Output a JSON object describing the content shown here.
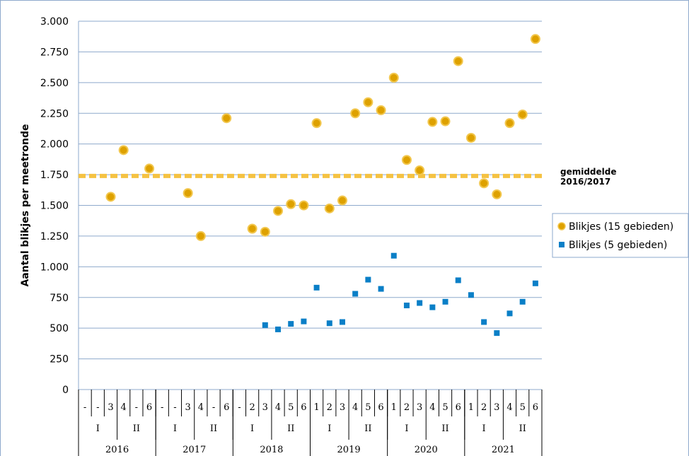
{
  "chart_data": {
    "type": "scatter",
    "ylabel": "Aantal blikjes per meetronde",
    "ylim": [
      0,
      3000
    ],
    "yticks": [
      0,
      250,
      500,
      750,
      1000,
      1250,
      1500,
      1750,
      2000,
      2250,
      2500,
      2750,
      3000
    ],
    "ytick_labels": [
      "0",
      "250",
      "500",
      "750",
      "1.000",
      "1.250",
      "1.500",
      "1.750",
      "2.000",
      "2.250",
      "2.500",
      "2.750",
      "3.000"
    ],
    "grid": true,
    "categories_level1": [
      "-",
      "-",
      "3",
      "4",
      "-",
      "6",
      "-",
      "-",
      "3",
      "4",
      "-",
      "6",
      "-",
      "2",
      "3",
      "4",
      "5",
      "6",
      "1",
      "2",
      "3",
      "4",
      "5",
      "6",
      "1",
      "2",
      "3",
      "4",
      "5",
      "6",
      "1",
      "2",
      "3",
      "4",
      "5",
      "6"
    ],
    "categories_level2": [
      "I",
      "II",
      "I",
      "II",
      "I",
      "II",
      "I",
      "II",
      "I",
      "II",
      "I",
      "II"
    ],
    "categories_level3": [
      "2016",
      "2017",
      "2018",
      "2019",
      "2020",
      "2021"
    ],
    "average_line": {
      "value": 1740,
      "label_line1": "gemiddelde",
      "label_line2": "2016/2017",
      "color": "#f5c242"
    },
    "legend_position": "right",
    "series": [
      {
        "name": "Blikjes (15 gebieden)",
        "marker": "circle",
        "color": "#dea100",
        "edge": "#f2c74e",
        "values": [
          null,
          null,
          1570,
          1950,
          null,
          1800,
          null,
          null,
          1600,
          1250,
          null,
          2210,
          null,
          1310,
          1285,
          1455,
          1510,
          1500,
          2170,
          1475,
          1540,
          2250,
          2340,
          2275,
          2540,
          1870,
          1785,
          2180,
          2185,
          2675,
          2050,
          1680,
          1590,
          2170,
          2240,
          2855
        ]
      },
      {
        "name": "Blikjes (5 gebieden)",
        "marker": "square",
        "color": "#0a7fc7",
        "values": [
          null,
          null,
          null,
          null,
          null,
          null,
          null,
          null,
          null,
          null,
          null,
          null,
          null,
          null,
          525,
          490,
          535,
          555,
          830,
          540,
          550,
          780,
          895,
          820,
          1090,
          685,
          705,
          670,
          715,
          890,
          770,
          550,
          460,
          620,
          715,
          865
        ]
      }
    ]
  }
}
